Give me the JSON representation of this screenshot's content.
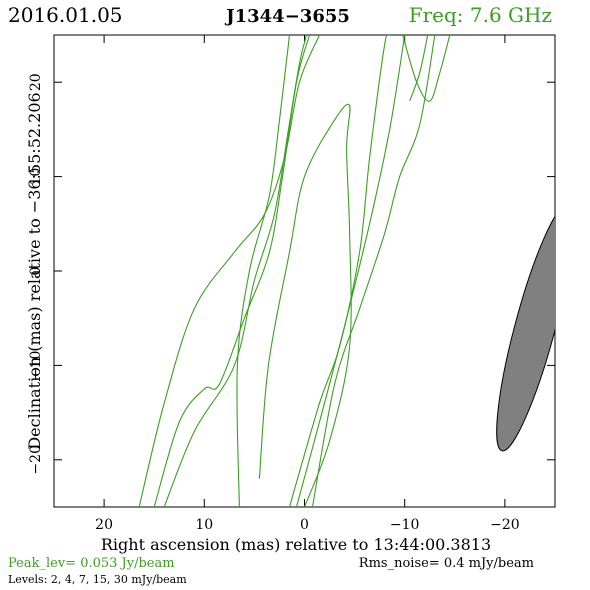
{
  "header": {
    "date": "2016.01.05",
    "source": "J1344−3655",
    "freq": "Freq: 7.6 GHz"
  },
  "colors": {
    "contour": "#3aa020",
    "freq_text": "#3aa020",
    "peak_text": "#3aa020",
    "beam_fill": "#808080",
    "axis": "#000000"
  },
  "footer": {
    "peak": "Peak_lev=  0.053 Jy/beam",
    "rms": "Rms_noise=  0.4 mJy/beam",
    "levels": "Levels:  2,  4,  7,  15,  30 mJy/beam"
  },
  "chart_data": {
    "type": "contour",
    "xlabel": "Right ascension (mas) relative to 13:44:00.3813",
    "ylabel": "Declination (mas) relative to −36:55:52.206",
    "xlim": [
      25,
      -25
    ],
    "ylim": [
      -25,
      25
    ],
    "xticks": [
      20,
      10,
      0,
      -10,
      -20
    ],
    "yticks": [
      20,
      10,
      0,
      -10,
      -20
    ],
    "xtick_labels": [
      "20",
      "10",
      "0",
      "−10",
      "−20"
    ],
    "ytick_labels": [
      "20",
      "10",
      "0",
      "−10",
      "−20"
    ],
    "contour_levels_mJy_per_beam": [
      2,
      4,
      7,
      15,
      30
    ],
    "contours": [
      {
        "points": [
          [
            16.5,
            -25
          ],
          [
            14,
            -14
          ],
          [
            11,
            -4
          ],
          [
            7,
            2
          ],
          [
            4,
            6
          ],
          [
            2,
            12
          ],
          [
            0.5,
            20
          ],
          [
            -1.5,
            25
          ]
        ]
      },
      {
        "points": [
          [
            15,
            -25
          ],
          [
            12.5,
            -16
          ],
          [
            10,
            -12.5
          ],
          [
            8.5,
            -12
          ],
          [
            6,
            -5
          ],
          [
            3.5,
            2
          ],
          [
            2.2,
            10
          ],
          [
            0.8,
            20
          ],
          [
            -0.5,
            25
          ]
        ]
      },
      {
        "points": [
          [
            14,
            -25
          ],
          [
            11,
            -17
          ],
          [
            7,
            -10
          ],
          [
            5,
            -1
          ],
          [
            3,
            6
          ],
          [
            1.6,
            15
          ],
          [
            0.5,
            22
          ],
          [
            -0.2,
            25
          ]
        ]
      },
      {
        "points": [
          [
            6.5,
            -25
          ],
          [
            6.7,
            -10
          ],
          [
            5.5,
            0
          ],
          [
            3.5,
            8
          ],
          [
            2.5,
            16
          ],
          [
            1.5,
            25
          ]
        ]
      },
      {
        "points": [
          [
            4.5,
            -22
          ],
          [
            3.6,
            -10
          ],
          [
            1.5,
            2
          ],
          [
            0,
            10
          ],
          [
            -3,
            16
          ],
          [
            -4.5,
            17.5
          ],
          [
            -4.2,
            13
          ],
          [
            -4.5,
            4
          ],
          [
            -4.5,
            -8
          ],
          [
            -2.5,
            -18
          ],
          [
            0,
            -25
          ]
        ]
      },
      {
        "points": [
          [
            1.5,
            -25
          ],
          [
            -1.5,
            -14
          ],
          [
            -3.5,
            -8
          ],
          [
            -5.5,
            2
          ],
          [
            -6.5,
            12
          ],
          [
            -8,
            24
          ],
          [
            -8.5,
            25
          ]
        ]
      },
      {
        "points": [
          [
            0.8,
            -25
          ],
          [
            -2,
            -14
          ],
          [
            -4.2,
            -5
          ],
          [
            -6.5,
            5
          ],
          [
            -8.5,
            15
          ],
          [
            -10,
            25
          ]
        ]
      },
      {
        "points": [
          [
            -0.8,
            -25
          ],
          [
            -3,
            -12
          ],
          [
            -5.5,
            -4
          ],
          [
            -8,
            4
          ],
          [
            -9.5,
            10
          ],
          [
            -11.5,
            15.5
          ],
          [
            -13,
            25
          ]
        ]
      },
      {
        "points": [
          [
            -10.5,
            18
          ],
          [
            -11.5,
            21
          ],
          [
            -12.3,
            25
          ]
        ]
      },
      {
        "points": [
          [
            -9.8,
            25
          ],
          [
            -11.2,
            20
          ],
          [
            -12.5,
            18
          ],
          [
            -13.5,
            21
          ],
          [
            -14.5,
            25
          ]
        ]
      }
    ],
    "beam": {
      "center": [
        -23,
        -6
      ],
      "major_mas": 27,
      "minor_mas": 4,
      "pa_deg": 15
    }
  }
}
